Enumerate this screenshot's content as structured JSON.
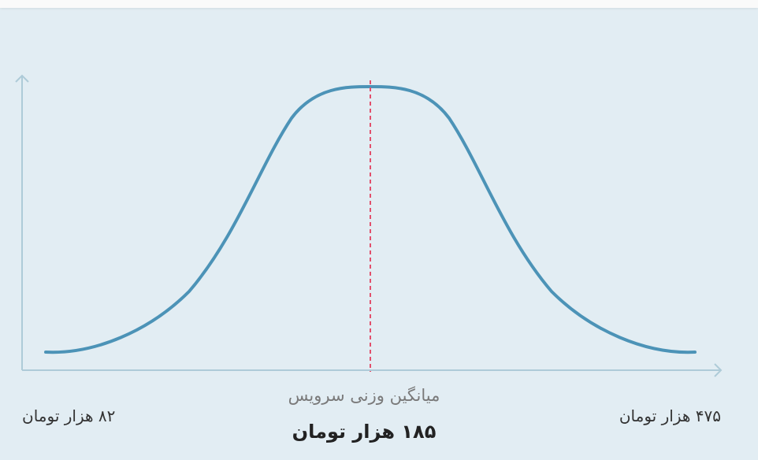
{
  "labels": {
    "mean_title": "میانگین وزنی سرویس",
    "mean_value": "۱۸۵ هزار تومان",
    "min": "۸۲ هزار تومان",
    "max": "۴۷۵ هزار تومان"
  }
}
